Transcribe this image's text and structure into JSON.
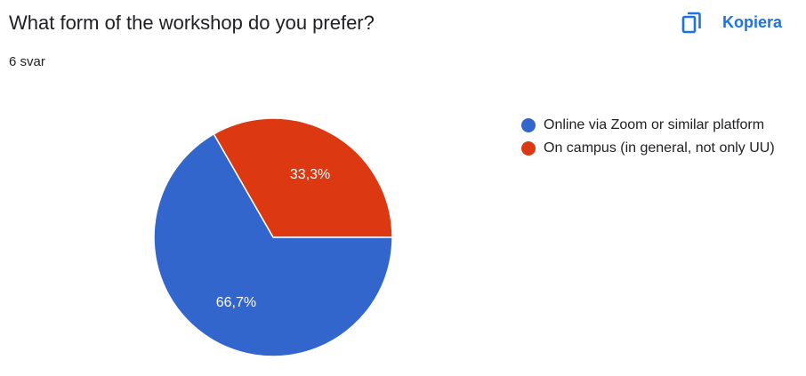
{
  "header": {
    "question": "What form of the workshop do you prefer?",
    "responses": "6 svar",
    "copy_label": "Kopiera",
    "copy_icon": "copy-icon",
    "accent_color": "#1a73e8"
  },
  "chart_data": {
    "type": "pie",
    "categories": [
      "Online via Zoom or similar platform",
      "On campus (in general, not only UU)"
    ],
    "values": [
      66.7,
      33.3
    ],
    "labels": [
      "66,7%",
      "33,3%"
    ],
    "colors": [
      "#3366cc",
      "#dc3912"
    ],
    "legend_position": "right"
  }
}
